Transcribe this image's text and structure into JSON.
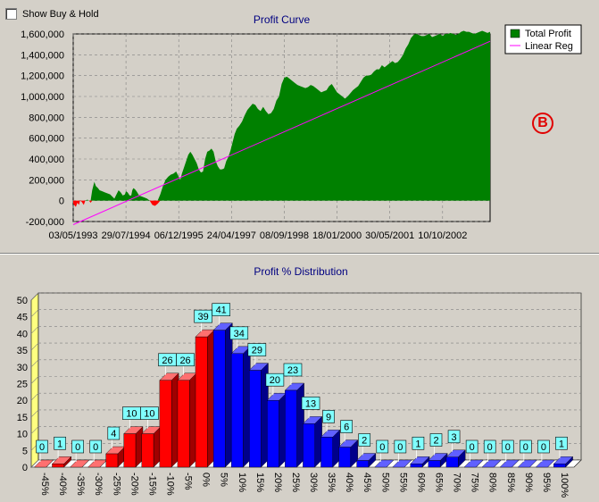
{
  "options": {
    "show_buy_hold_label": "Show Buy & Hold",
    "show_buy_hold_checked": false
  },
  "badge": {
    "label": "B",
    "color": "#e00000"
  },
  "chart_data": [
    {
      "type": "area",
      "title": "Profit Curve",
      "xlabel": "",
      "ylabel": "",
      "ylim": [
        -200000,
        1600000
      ],
      "yticks": [
        "1,600,000",
        "1,400,000",
        "1,200,000",
        "1,000,000",
        "800,000",
        "600,000",
        "400,000",
        "200,000",
        "0",
        "-200,000"
      ],
      "xticks": [
        "03/05/1993",
        "29/07/1994",
        "06/12/1995",
        "24/04/1997",
        "08/09/1998",
        "18/01/2000",
        "30/05/2001",
        "10/10/2002"
      ],
      "grid": true,
      "legend": "top-right",
      "series": [
        {
          "name": "Total Profit",
          "color": "#008000",
          "x": [
            0.0,
            0.05,
            0.08,
            0.11,
            0.13,
            0.16,
            0.2,
            0.23,
            0.27,
            0.3,
            0.33,
            0.36,
            0.4,
            0.43,
            0.47,
            0.5,
            0.55,
            0.6,
            0.65,
            0.7,
            0.74,
            0.78,
            0.82,
            0.86,
            0.9,
            0.94,
            0.98,
            1.0,
            1.03,
            1.07,
            1.1,
            1.12,
            1.14,
            1.17,
            1.2,
            1.25,
            1.3,
            1.35,
            1.4,
            1.45,
            1.5,
            1.55,
            1.6,
            1.65,
            1.7,
            1.75,
            1.8,
            1.85,
            1.9,
            1.95,
            2.0,
            2.03,
            2.06,
            2.1,
            2.14,
            2.18,
            2.22,
            2.26,
            2.3,
            2.34,
            2.38,
            2.42,
            2.46,
            2.5,
            2.54,
            2.58,
            2.62,
            2.66,
            2.7,
            2.74,
            2.78,
            2.82,
            2.86,
            2.9,
            2.94,
            2.98,
            3.02,
            3.06,
            3.1,
            3.15,
            3.2,
            3.25,
            3.3,
            3.35,
            3.4,
            3.45,
            3.5,
            3.55,
            3.6,
            3.65,
            3.7,
            3.75,
            3.8,
            3.85,
            3.9,
            3.95,
            4.0,
            4.05,
            4.1,
            4.15,
            4.2,
            4.25,
            4.3,
            4.35,
            4.4,
            4.45,
            4.5,
            4.55,
            4.6,
            4.65,
            4.7,
            4.75,
            4.8,
            4.85,
            4.9,
            4.95,
            5.0,
            5.05,
            5.1,
            5.15,
            5.2,
            5.25,
            5.3,
            5.35,
            5.4,
            5.45,
            5.5,
            5.55,
            5.6,
            5.65,
            5.7,
            5.75,
            5.8,
            5.85,
            5.9,
            5.95,
            6.0,
            6.05,
            6.1,
            6.15,
            6.2,
            6.25,
            6.3,
            6.35,
            6.4,
            6.45,
            6.5,
            6.55,
            6.6,
            6.65,
            6.7,
            6.75,
            6.8,
            6.85,
            6.9,
            6.95,
            7.0,
            7.05,
            7.1,
            7.15,
            7.2,
            7.25,
            7.3,
            7.35,
            7.4,
            7.45,
            7.5,
            7.55,
            7.6,
            7.65,
            7.7,
            7.75,
            7.8,
            7.85,
            7.9
          ],
          "values": [
            -30000,
            -60000,
            -20000,
            -40000,
            0,
            -10000,
            -40000,
            0,
            10000,
            0,
            -20000,
            100000,
            180000,
            140000,
            120000,
            100000,
            90000,
            80000,
            70000,
            60000,
            40000,
            20000,
            60000,
            100000,
            80000,
            50000,
            60000,
            90000,
            80000,
            50000,
            50000,
            100000,
            120000,
            110000,
            90000,
            50000,
            40000,
            30000,
            20000,
            0,
            -40000,
            -50000,
            -30000,
            60000,
            140000,
            200000,
            230000,
            250000,
            260000,
            280000,
            230000,
            200000,
            260000,
            320000,
            380000,
            440000,
            470000,
            440000,
            400000,
            360000,
            300000,
            270000,
            280000,
            400000,
            470000,
            480000,
            500000,
            470000,
            380000,
            330000,
            300000,
            300000,
            310000,
            380000,
            420000,
            480000,
            560000,
            640000,
            690000,
            720000,
            760000,
            820000,
            870000,
            900000,
            930000,
            920000,
            880000,
            860000,
            900000,
            860000,
            830000,
            840000,
            880000,
            960000,
            1000000,
            1120000,
            1180000,
            1190000,
            1170000,
            1150000,
            1130000,
            1110000,
            1100000,
            1090000,
            1080000,
            1090000,
            1110000,
            1100000,
            1080000,
            1060000,
            1040000,
            1050000,
            1060000,
            1100000,
            1120000,
            1080000,
            1040000,
            1020000,
            1000000,
            980000,
            1000000,
            1030000,
            1060000,
            1080000,
            1100000,
            1140000,
            1180000,
            1200000,
            1200000,
            1210000,
            1240000,
            1260000,
            1260000,
            1300000,
            1280000,
            1300000,
            1320000,
            1340000,
            1320000,
            1330000,
            1360000,
            1400000,
            1460000,
            1500000,
            1560000,
            1590000,
            1600000,
            1590000,
            1580000,
            1580000,
            1590000,
            1600000,
            1570000,
            1580000,
            1590000,
            1600000,
            1580000,
            1600000,
            1600000,
            1610000,
            1600000,
            1590000,
            1600000,
            1620000,
            1630000,
            1620000,
            1620000,
            1610000,
            1600000,
            1610000,
            1620000,
            1630000,
            1620000,
            1610000,
            1620000
          ]
        },
        {
          "name": "Linear Reg",
          "color": "#ff00ff",
          "x": [
            0.0,
            7.9
          ],
          "values": [
            -230000,
            1530000
          ]
        }
      ]
    },
    {
      "type": "bar",
      "title": "Profit % Distribution",
      "xlabel": "",
      "ylabel": "",
      "ylim": [
        0,
        50
      ],
      "yticks": [
        "0",
        "5",
        "10",
        "15",
        "20",
        "25",
        "30",
        "35",
        "40",
        "45",
        "50"
      ],
      "grid": true,
      "categories": [
        "-45%",
        "-40%",
        "-35%",
        "-30%",
        "-25%",
        "-20%",
        "-15%",
        "-10%",
        "-5%",
        "0%",
        "5%",
        "10%",
        "15%",
        "20%",
        "25%",
        "30%",
        "35%",
        "40%",
        "45%",
        "50%",
        "55%",
        "60%",
        "65%",
        "70%",
        "75%",
        "80%",
        "85%",
        "90%",
        "95%",
        "100%"
      ],
      "values": [
        0,
        1,
        0,
        0,
        4,
        10,
        10,
        26,
        26,
        39,
        41,
        34,
        29,
        20,
        23,
        13,
        9,
        6,
        2,
        0,
        0,
        1,
        2,
        3,
        0,
        0,
        0,
        0,
        0,
        1
      ],
      "colors": {
        "loss": "#ff0000",
        "profit": "#0000ff"
      }
    }
  ]
}
